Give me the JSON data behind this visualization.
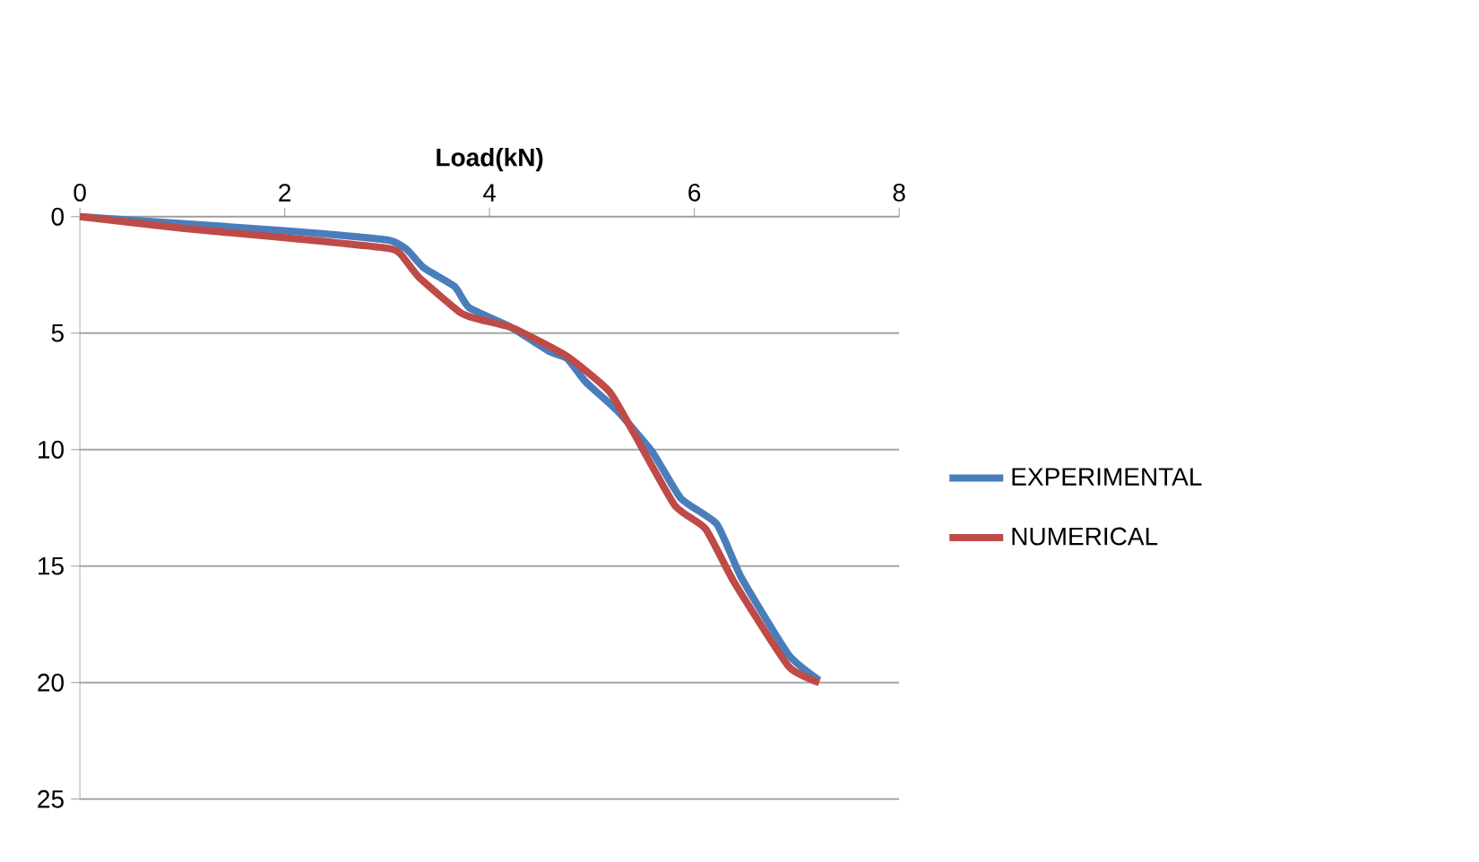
{
  "chart_data": {
    "type": "line",
    "xlabel": "Load(kN)",
    "xlim": [
      0,
      8
    ],
    "xticks": [
      0,
      2,
      4,
      6,
      8
    ],
    "ylim": [
      25,
      0
    ],
    "yticks": [
      0,
      5,
      10,
      15,
      20,
      25
    ],
    "grid": "y",
    "legend": "right",
    "line_style": "solid",
    "series": [
      {
        "name": "EXPERIMENTAL",
        "color": "#4a7ebb",
        "x": [
          0,
          1.0,
          2.0,
          3.0,
          3.19,
          3.36,
          3.66,
          3.8,
          4.19,
          4.59,
          4.76,
          4.94,
          5.24,
          5.59,
          5.87,
          6.22,
          6.46,
          6.92,
          7.22
        ],
        "values": [
          0,
          0.3,
          0.6,
          1.0,
          1.4,
          2.2,
          3.0,
          3.9,
          4.7,
          5.8,
          6.1,
          7.1,
          8.3,
          10.1,
          12.1,
          13.2,
          15.5,
          18.8,
          19.9
        ]
      },
      {
        "name": "NUMERICAL",
        "color": "#be4b48",
        "x": [
          0,
          1.0,
          2.0,
          3.0,
          3.13,
          3.31,
          3.71,
          3.89,
          4.24,
          4.76,
          5.17,
          5.41,
          5.81,
          6.11,
          6.39,
          6.92,
          7.22
        ],
        "values": [
          0,
          0.5,
          0.9,
          1.35,
          1.6,
          2.6,
          4.1,
          4.4,
          4.8,
          6.0,
          7.5,
          9.3,
          12.4,
          13.4,
          15.7,
          19.3,
          20.0
        ]
      }
    ]
  }
}
